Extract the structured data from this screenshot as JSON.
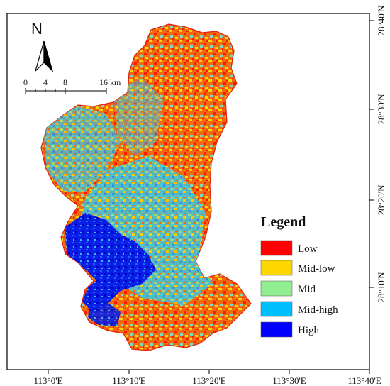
{
  "map": {
    "north_label": "N",
    "scale_bar": {
      "ticks": [
        "0",
        "4",
        "8",
        "16 km"
      ]
    },
    "x_ticks": [
      "113°0'E",
      "113°10'E",
      "113°20'E",
      "113°30'E",
      "113°40'E"
    ],
    "y_ticks": [
      "28°40'N",
      "28°30'N",
      "28°20'N",
      "28°10'N"
    ],
    "legend": {
      "title": "Legend",
      "items": [
        {
          "label": "Low",
          "color": "#ff0000"
        },
        {
          "label": "Mid-low",
          "color": "#ffd700"
        },
        {
          "label": "Mid",
          "color": "#90ee90"
        },
        {
          "label": "Mid-high",
          "color": "#00bfff"
        },
        {
          "label": "High",
          "color": "#0000ff"
        }
      ]
    },
    "colors": {
      "low": "#ff0000",
      "mid_low": "#ffd700",
      "mid": "#90ee90",
      "mid_high": "#00bfff",
      "high": "#0000ff",
      "frame": "#000000"
    }
  }
}
